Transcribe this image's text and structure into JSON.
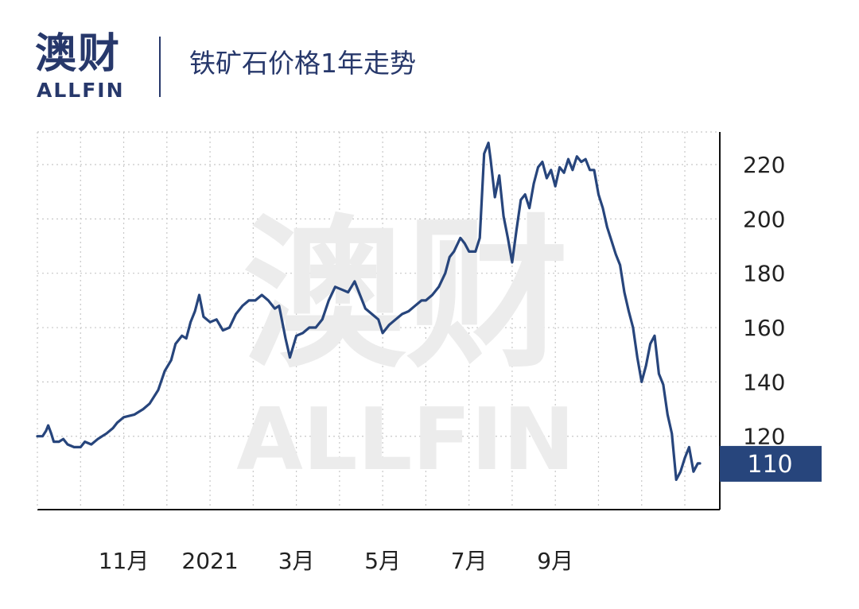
{
  "header": {
    "logo_cn": "澳财",
    "logo_en": "ALLFIN",
    "title": "铁矿石价格1年走势"
  },
  "watermark": {
    "cn": "澳财",
    "en": "ALLFIN"
  },
  "colors": {
    "line": "#27457c",
    "brand": "#27386b",
    "logo_accent": "#d83d6a",
    "last_label_bg": "#27457c",
    "grid": "#c8c8c8",
    "watermark": "#ececec"
  },
  "chart_data": {
    "type": "line",
    "title": "铁矿石价格1年走势",
    "xlabel": "",
    "ylabel": "",
    "ylim": [
      93,
      232
    ],
    "y_axis_side": "right",
    "y_ticks": [
      120,
      140,
      160,
      180,
      200,
      220
    ],
    "x_ticks": [
      {
        "label": "11月",
        "x": 2
      },
      {
        "label": "2021",
        "x": 4
      },
      {
        "label": "3月",
        "x": 6
      },
      {
        "label": "5月",
        "x": 8
      },
      {
        "label": "7月",
        "x": 10
      },
      {
        "label": "9月",
        "x": 12
      }
    ],
    "grid": true,
    "last_value_label": "110",
    "series": [
      {
        "points": [
          [
            0,
            120
          ],
          [
            0.12,
            120
          ],
          [
            0.2,
            122
          ],
          [
            0.25,
            124
          ],
          [
            0.32,
            121
          ],
          [
            0.38,
            118
          ],
          [
            0.5,
            118
          ],
          [
            0.6,
            119
          ],
          [
            0.7,
            117
          ],
          [
            0.85,
            116
          ],
          [
            1.0,
            116
          ],
          [
            1.1,
            118
          ],
          [
            1.25,
            117
          ],
          [
            1.4,
            119
          ],
          [
            1.5,
            120
          ],
          [
            1.6,
            121
          ],
          [
            1.75,
            123
          ],
          [
            1.85,
            125
          ],
          [
            2.0,
            127
          ],
          [
            2.25,
            128
          ],
          [
            2.45,
            130
          ],
          [
            2.6,
            132
          ],
          [
            2.8,
            137
          ],
          [
            2.95,
            144
          ],
          [
            3.1,
            148
          ],
          [
            3.2,
            154
          ],
          [
            3.35,
            157
          ],
          [
            3.45,
            156
          ],
          [
            3.55,
            162
          ],
          [
            3.65,
            166
          ],
          [
            3.75,
            172
          ],
          [
            3.85,
            164
          ],
          [
            4.0,
            162
          ],
          [
            4.15,
            163
          ],
          [
            4.3,
            159
          ],
          [
            4.45,
            160
          ],
          [
            4.6,
            165
          ],
          [
            4.75,
            168
          ],
          [
            4.9,
            170
          ],
          [
            5.05,
            170
          ],
          [
            5.2,
            172
          ],
          [
            5.35,
            170
          ],
          [
            5.5,
            167
          ],
          [
            5.6,
            168
          ],
          [
            5.75,
            156
          ],
          [
            5.85,
            149
          ],
          [
            6.0,
            157
          ],
          [
            6.15,
            158
          ],
          [
            6.3,
            160
          ],
          [
            6.45,
            160
          ],
          [
            6.6,
            163
          ],
          [
            6.75,
            170
          ],
          [
            6.9,
            175
          ],
          [
            7.05,
            174
          ],
          [
            7.2,
            173
          ],
          [
            7.35,
            177
          ],
          [
            7.5,
            171
          ],
          [
            7.6,
            167
          ],
          [
            7.75,
            165
          ],
          [
            7.9,
            163
          ],
          [
            8.0,
            158
          ],
          [
            8.15,
            161
          ],
          [
            8.3,
            163
          ],
          [
            8.45,
            165
          ],
          [
            8.6,
            166
          ],
          [
            8.75,
            168
          ],
          [
            8.9,
            170
          ],
          [
            9.0,
            170
          ],
          [
            9.15,
            172
          ],
          [
            9.3,
            175
          ],
          [
            9.45,
            180
          ],
          [
            9.55,
            186
          ],
          [
            9.65,
            188
          ],
          [
            9.8,
            193
          ],
          [
            9.9,
            191
          ],
          [
            10.0,
            188
          ],
          [
            10.15,
            188
          ],
          [
            10.25,
            193
          ],
          [
            10.35,
            224
          ],
          [
            10.45,
            228
          ],
          [
            10.5,
            222
          ],
          [
            10.6,
            208
          ],
          [
            10.7,
            216
          ],
          [
            10.8,
            201
          ],
          [
            10.9,
            193
          ],
          [
            11.0,
            184
          ],
          [
            11.1,
            196
          ],
          [
            11.2,
            207
          ],
          [
            11.3,
            209
          ],
          [
            11.4,
            204
          ],
          [
            11.5,
            213
          ],
          [
            11.6,
            219
          ],
          [
            11.7,
            221
          ],
          [
            11.8,
            215
          ],
          [
            11.9,
            218
          ],
          [
            12.0,
            212
          ],
          [
            12.1,
            219
          ],
          [
            12.2,
            217
          ],
          [
            12.3,
            222
          ],
          [
            12.4,
            218
          ],
          [
            12.5,
            223
          ],
          [
            12.6,
            221
          ],
          [
            12.7,
            222
          ],
          [
            12.8,
            218
          ],
          [
            12.9,
            218
          ],
          [
            13.0,
            209
          ],
          [
            13.1,
            204
          ],
          [
            13.2,
            197
          ],
          [
            13.3,
            192
          ],
          [
            13.4,
            187
          ],
          [
            13.5,
            183
          ],
          [
            13.6,
            173
          ],
          [
            13.7,
            166
          ],
          [
            13.8,
            160
          ],
          [
            13.9,
            149
          ],
          [
            14.0,
            140
          ],
          [
            14.1,
            146
          ],
          [
            14.2,
            154
          ],
          [
            14.3,
            157
          ],
          [
            14.4,
            143
          ],
          [
            14.5,
            139
          ],
          [
            14.6,
            128
          ],
          [
            14.7,
            121
          ],
          [
            14.8,
            104
          ],
          [
            14.9,
            107
          ],
          [
            15.0,
            112
          ],
          [
            15.1,
            116
          ],
          [
            15.2,
            107
          ],
          [
            15.3,
            110
          ],
          [
            15.35,
            110
          ]
        ]
      }
    ]
  }
}
